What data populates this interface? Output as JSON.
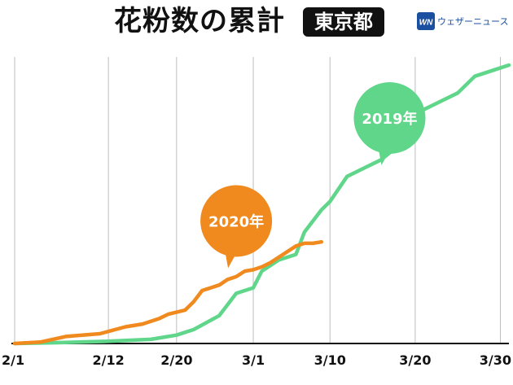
{
  "header": {
    "title": "花粉数の累計",
    "region": "東京都",
    "brand_logo_icon": "weathernews-logo-icon",
    "brand_name": "ウェザーニュース"
  },
  "chart_data": {
    "type": "line",
    "title": "花粉数の累計",
    "region": "東京都",
    "xlabel": "",
    "ylabel": "",
    "x_ticks": [
      "2/1",
      "2/12",
      "2/20",
      "3/1",
      "3/10",
      "3/20",
      "3/30"
    ],
    "x_tick_day_index": [
      0,
      11,
      19,
      28,
      37,
      47,
      57
    ],
    "xlim_day_index": [
      0,
      58
    ],
    "ylim": [
      0,
      100
    ],
    "grid": "vertical",
    "legend": "callout bubbles",
    "series": [
      {
        "name": "2019年",
        "color": "#5fd68a",
        "x_day_index": [
          0,
          5,
          11,
          16,
          19,
          21,
          24,
          26,
          28,
          29,
          31,
          33,
          34,
          36,
          37,
          39,
          41,
          43,
          45,
          46,
          48,
          52,
          54,
          56,
          58
        ],
        "values": [
          0,
          0.3,
          0.8,
          1.5,
          3,
          5,
          10,
          18,
          20,
          26,
          30,
          32,
          40,
          48,
          51,
          60,
          63,
          66,
          71,
          80,
          84,
          90,
          96,
          98,
          100
        ]
      },
      {
        "name": "2020年",
        "color": "#f08a1e",
        "x_day_index": [
          0,
          3,
          6,
          10,
          13,
          15,
          17,
          18,
          20,
          21,
          22,
          23,
          24,
          25,
          26,
          27,
          28,
          29,
          30,
          31,
          32,
          33,
          34,
          35,
          36
        ],
        "values": [
          0,
          0.5,
          2.5,
          3.5,
          6,
          7,
          9,
          10.5,
          12,
          15,
          19,
          20,
          21,
          23,
          24,
          26,
          26.5,
          27.5,
          29,
          31,
          33,
          35,
          36,
          36,
          36.5
        ]
      }
    ],
    "annotations": [
      {
        "text": "2019年",
        "series": "2019年",
        "x_day_index": 44,
        "y": 81
      },
      {
        "text": "2020年",
        "series": "2020年",
        "x_day_index": 26,
        "y": 44
      }
    ]
  }
}
